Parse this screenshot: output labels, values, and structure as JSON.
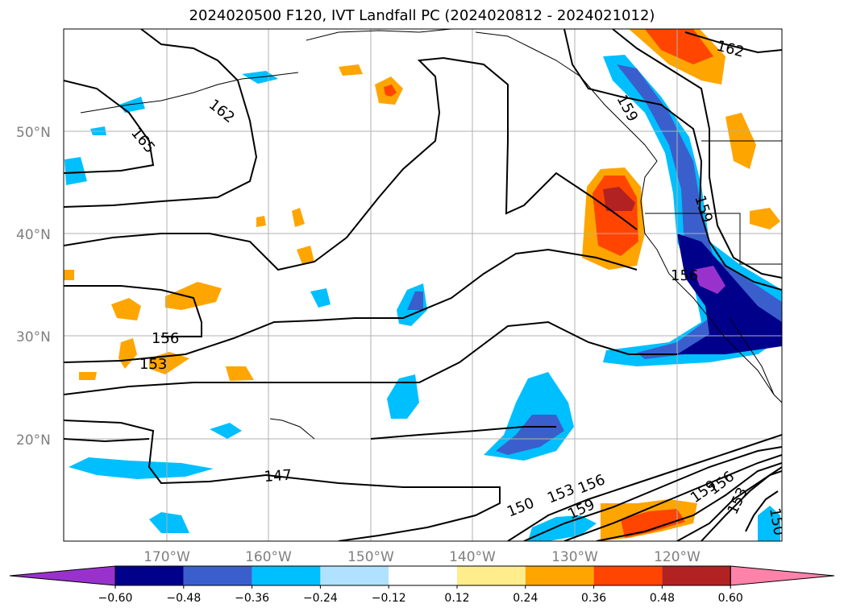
{
  "title": "2024020500 F120, IVT Landfall PC (2024020812 - 2024021012)",
  "lat_labels": [
    "50°N",
    "40°N",
    "30°N",
    "20°N"
  ],
  "lon_labels": [
    "170°W",
    "160°W",
    "150°W",
    "140°W",
    "130°W",
    "120°W"
  ],
  "contour_labels": [
    "162",
    "165",
    "162",
    "159",
    "159",
    "156",
    "156",
    "153",
    "147",
    "150",
    "153",
    "156",
    "159",
    "159",
    "156",
    "153",
    "150"
  ],
  "colorbar": {
    "ticks": [
      "−0.60",
      "−0.48",
      "−0.36",
      "−0.24",
      "−0.12",
      "0.12",
      "0.24",
      "0.36",
      "0.48",
      "0.60"
    ],
    "colors": [
      "#9932cc",
      "#00008b",
      "#3a5fcd",
      "#00bfff",
      "#b0e2ff",
      "#ffffff",
      "#ffec8b",
      "#ffa500",
      "#ff4500",
      "#b22222",
      "#ff82ab"
    ]
  }
}
